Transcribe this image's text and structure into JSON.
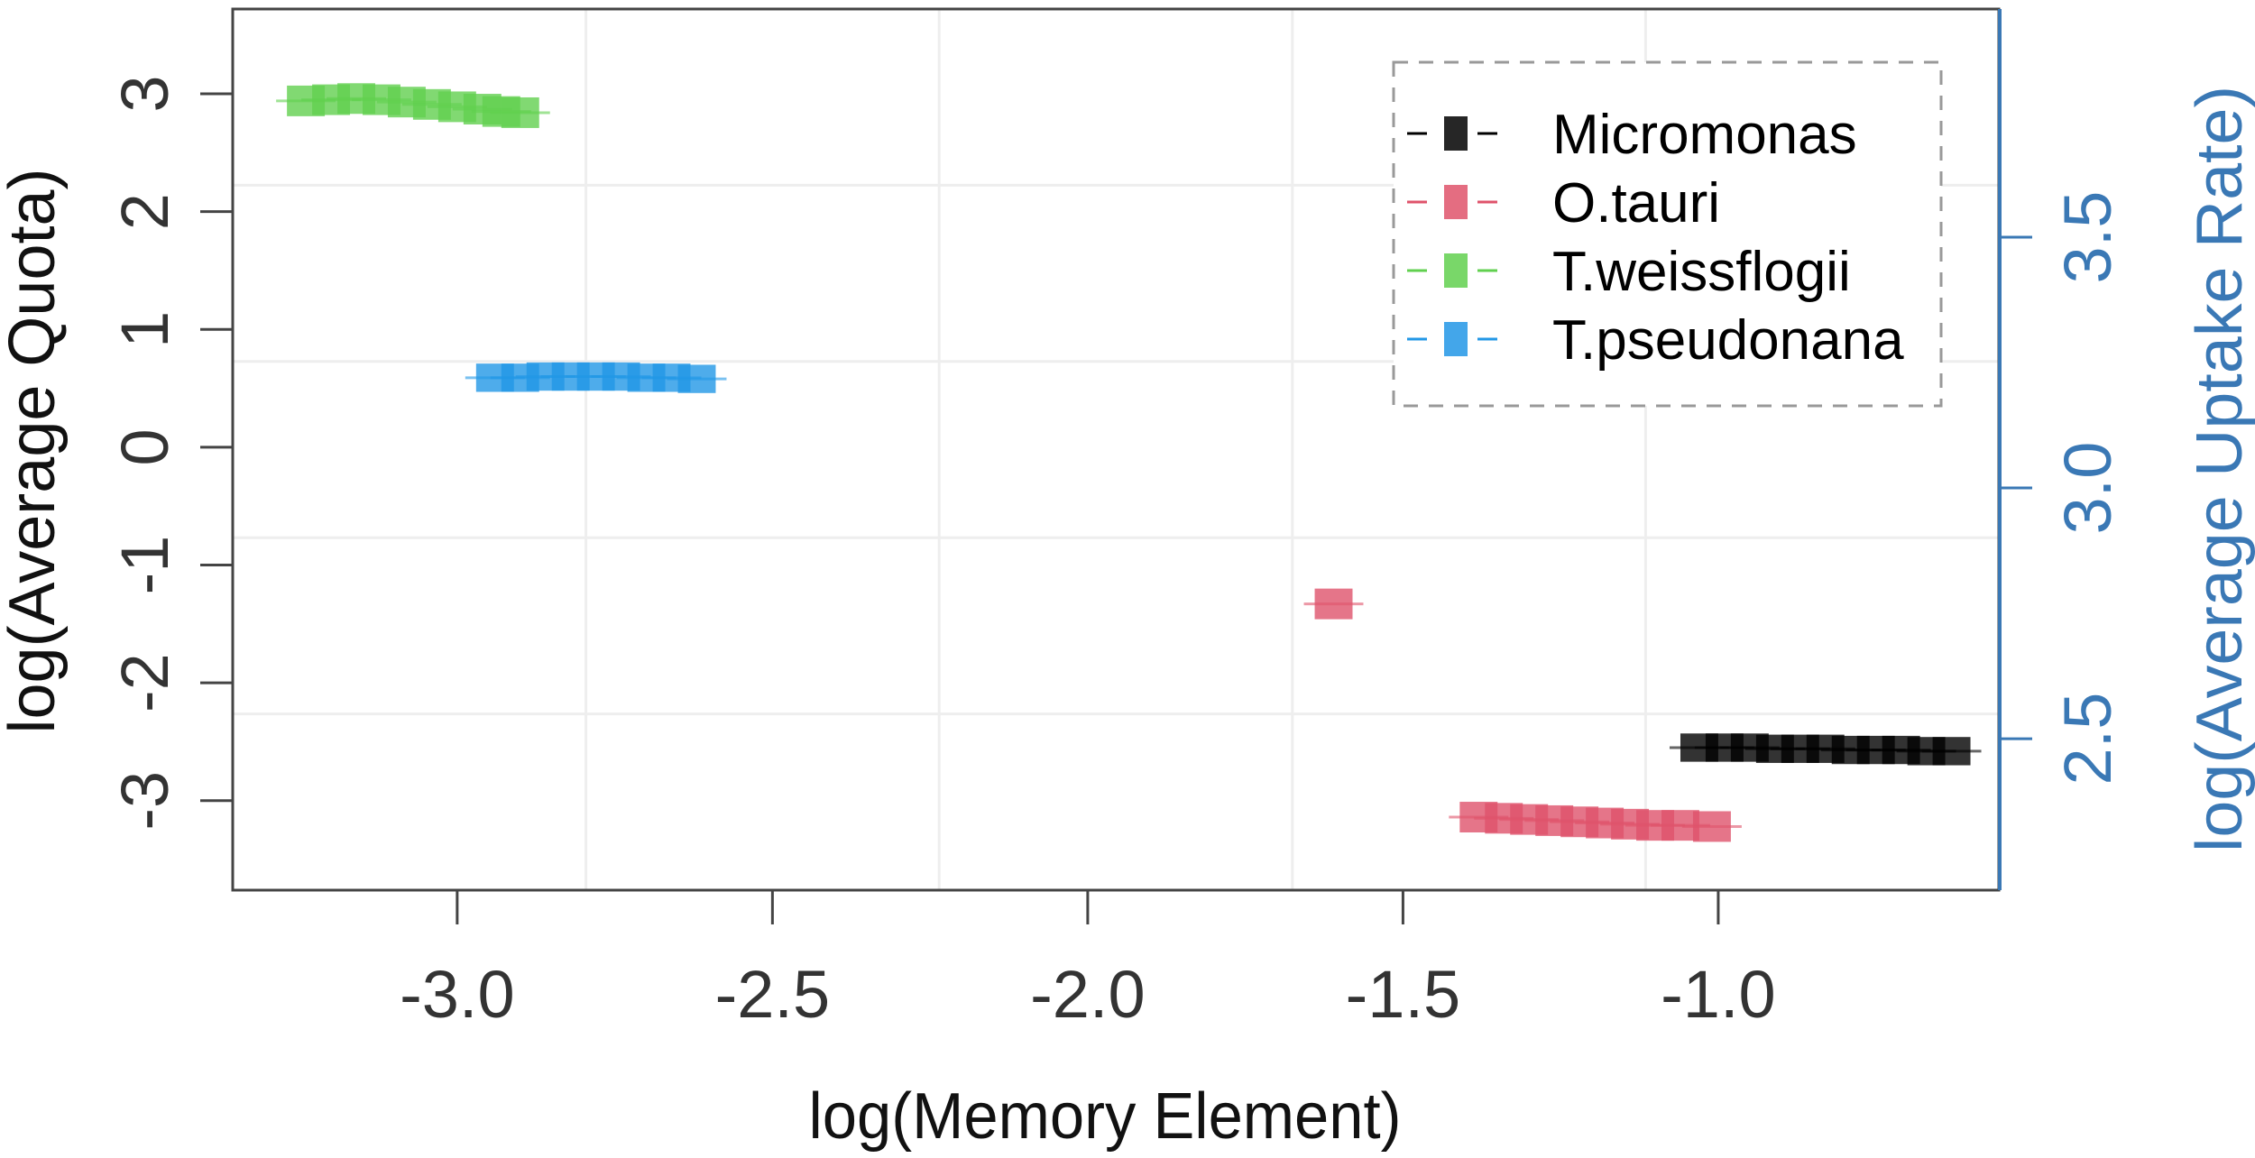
{
  "chart_data": {
    "type": "scatter",
    "title": "",
    "xlabel": "log(Memory Element)",
    "ylabel": "log(Average Quota)",
    "ylabel_right": "log(Average Uptake Rate)",
    "xlim": [
      -3.356,
      -0.555
    ],
    "ylim": [
      -3.76,
      3.72
    ],
    "ylim_right": [
      2.198,
      3.955
    ],
    "xticks": [
      "-3.0",
      "-2.5",
      "-2.0",
      "-1.5",
      "-1.0"
    ],
    "xtick_values": [
      -3.0,
      -2.5,
      -2.0,
      -1.5,
      -1.0
    ],
    "yticks": [
      "-3",
      "-2",
      "-1",
      "0",
      "1",
      "2",
      "3"
    ],
    "ytick_values": [
      -3,
      -2,
      -1,
      0,
      1,
      2,
      3
    ],
    "yticks_right": [
      "2.5",
      "3.0",
      "3.5"
    ],
    "ytick_right_values": [
      2.5,
      3.0,
      3.5
    ],
    "grid": true,
    "legend_position": "top-right",
    "right_axis_color": "#3A78B5",
    "series": [
      {
        "name": "Micromonas",
        "color": "#000000",
        "xerr": 0.03,
        "yerr": 0.12,
        "points": [
          [
            -1.03,
            -2.55
          ],
          [
            -0.99,
            -2.55
          ],
          [
            -0.95,
            -2.55
          ],
          [
            -0.91,
            -2.56
          ],
          [
            -0.87,
            -2.56
          ],
          [
            -0.83,
            -2.56
          ],
          [
            -0.79,
            -2.57
          ],
          [
            -0.75,
            -2.57
          ],
          [
            -0.71,
            -2.57
          ],
          [
            -0.67,
            -2.58
          ],
          [
            -0.63,
            -2.58
          ]
        ]
      },
      {
        "name": "O.tauri",
        "color": "#DF536B",
        "xerr": 0.03,
        "yerr": 0.13,
        "points": [
          [
            -1.38,
            -3.14
          ],
          [
            -1.34,
            -3.15
          ],
          [
            -1.3,
            -3.16
          ],
          [
            -1.26,
            -3.17
          ],
          [
            -1.22,
            -3.18
          ],
          [
            -1.18,
            -3.19
          ],
          [
            -1.14,
            -3.2
          ],
          [
            -1.1,
            -3.21
          ],
          [
            -1.06,
            -3.21
          ],
          [
            -1.01,
            -3.22
          ],
          [
            -1.61,
            -1.33
          ]
        ]
      },
      {
        "name": "T.weissflogii",
        "color": "#61D04F",
        "xerr": 0.03,
        "yerr": 0.13,
        "points": [
          [
            -3.24,
            2.94
          ],
          [
            -3.2,
            2.95
          ],
          [
            -3.16,
            2.96
          ],
          [
            -3.12,
            2.95
          ],
          [
            -3.08,
            2.93
          ],
          [
            -3.04,
            2.91
          ],
          [
            -3.0,
            2.89
          ],
          [
            -2.96,
            2.87
          ],
          [
            -2.93,
            2.85
          ],
          [
            -2.9,
            2.84
          ]
        ]
      },
      {
        "name": "T.pseudonana",
        "color": "#2297E6",
        "xerr": 0.03,
        "yerr": 0.12,
        "points": [
          [
            -2.94,
            0.59
          ],
          [
            -2.9,
            0.59
          ],
          [
            -2.86,
            0.6
          ],
          [
            -2.82,
            0.6
          ],
          [
            -2.78,
            0.6
          ],
          [
            -2.74,
            0.6
          ],
          [
            -2.7,
            0.59
          ],
          [
            -2.66,
            0.59
          ],
          [
            -2.62,
            0.58
          ]
        ]
      }
    ]
  }
}
